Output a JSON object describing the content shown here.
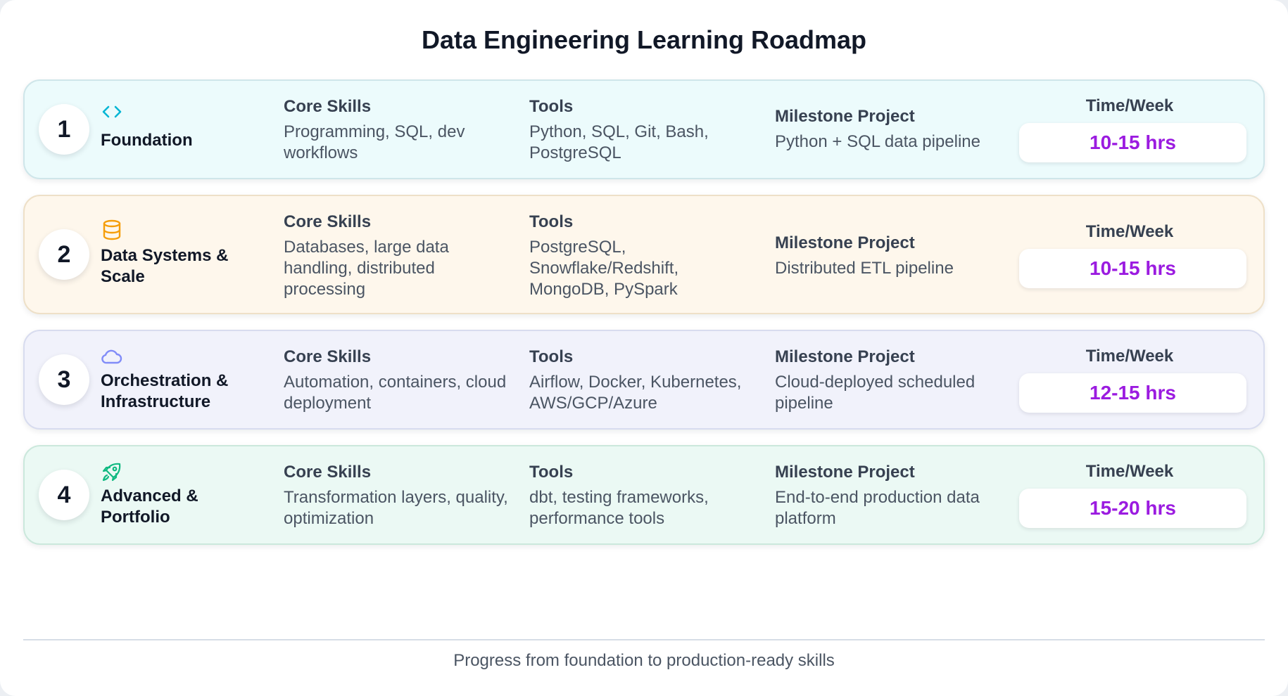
{
  "title": "Data Engineering Learning Roadmap",
  "footer": "Progress from foundation to production-ready skills",
  "colors": {
    "hours_text": "#9b1be0",
    "foundation_icon": "#06b6d4",
    "data_systems_icon": "#f59e0b",
    "orchestration_icon": "#818cf8",
    "advanced_icon": "#10b981"
  },
  "labels": {
    "core_skills": "Core Skills",
    "tools": "Tools",
    "milestone": "Milestone Project",
    "time": "Time/Week"
  },
  "stages": [
    {
      "number": "1",
      "icon": "code-icon",
      "name": "Foundation",
      "core_skills": "Programming, SQL, dev workflows",
      "tools": "Python, SQL, Git, Bash, PostgreSQL",
      "milestone": "Python + SQL data pipeline",
      "hours": "10-15 hrs"
    },
    {
      "number": "2",
      "icon": "database-icon",
      "name": "Data Systems & Scale",
      "core_skills": "Databases, large data handling, distributed processing",
      "tools": "PostgreSQL, Snowflake/Redshift, MongoDB, PySpark",
      "milestone": "Distributed ETL pipeline",
      "hours": "10-15 hrs"
    },
    {
      "number": "3",
      "icon": "cloud-icon",
      "name": "Orchestration & Infrastructure",
      "core_skills": "Automation, containers, cloud deployment",
      "tools": "Airflow, Docker, Kubernetes, AWS/GCP/Azure",
      "milestone": "Cloud-deployed scheduled pipeline",
      "hours": "12-15 hrs"
    },
    {
      "number": "4",
      "icon": "rocket-icon",
      "name": "Advanced & Portfolio",
      "core_skills": "Transformation layers, quality, optimization",
      "tools": "dbt, testing frameworks, performance tools",
      "milestone": "End-to-end production data platform",
      "hours": "15-20 hrs"
    }
  ]
}
